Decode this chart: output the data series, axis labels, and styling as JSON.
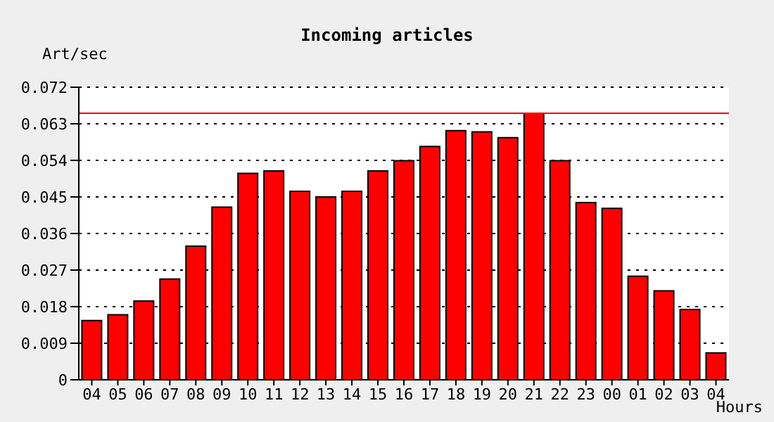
{
  "chart_data": {
    "type": "bar",
    "title": "Incoming articles",
    "ylabel": "Art/sec",
    "xlabel": "Hours",
    "categories": [
      "04",
      "05",
      "06",
      "07",
      "08",
      "09",
      "10",
      "11",
      "12",
      "13",
      "14",
      "15",
      "16",
      "17",
      "18",
      "19",
      "20",
      "21",
      "22",
      "23",
      "00",
      "01",
      "02",
      "03",
      "04"
    ],
    "series": [
      {
        "color": "#ff0000",
        "values": [
          0.0146,
          0.016,
          0.0194,
          0.0248,
          0.0329,
          0.0425,
          0.0508,
          0.0514,
          0.0464,
          0.045,
          0.0464,
          0.0514,
          0.0539,
          0.0574,
          0.0613,
          0.061,
          0.0596,
          0.0656,
          0.0539,
          0.0436,
          0.0422,
          0.0255,
          0.0219,
          0.0173,
          0.0066
        ]
      }
    ],
    "ylim": [
      0,
      0.072
    ],
    "yticks": [
      0,
      0.009,
      0.018,
      0.027,
      0.036,
      0.045,
      0.054,
      0.063,
      0.072
    ],
    "grid": "y",
    "ref_lines": [
      {
        "axis": "y",
        "value": 0.0656,
        "color": "#ff0000"
      }
    ]
  }
}
